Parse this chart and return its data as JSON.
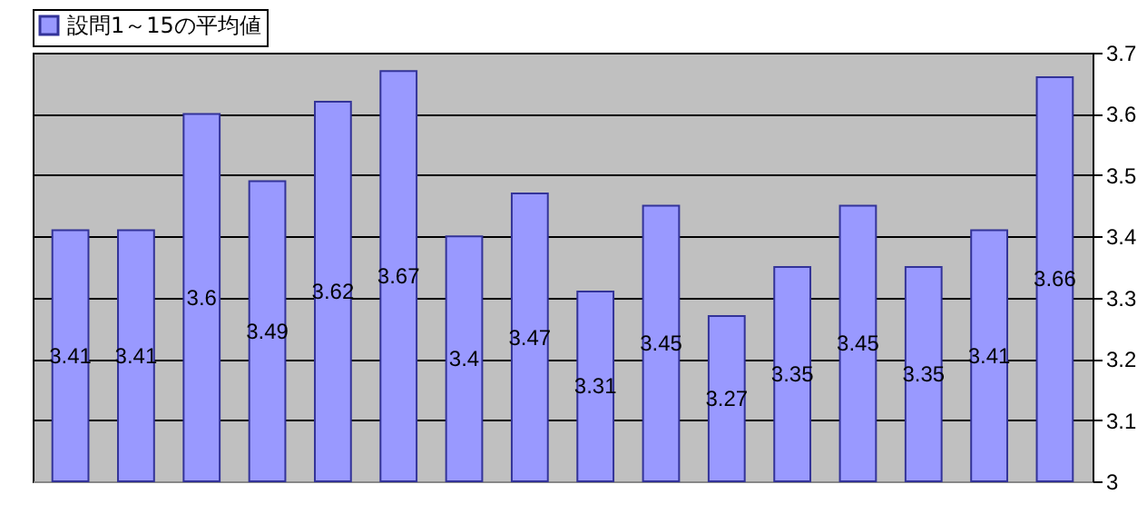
{
  "chart_data": {
    "type": "bar",
    "categories": [
      null,
      null,
      null,
      null,
      null,
      null,
      null,
      null,
      null,
      null,
      null,
      null,
      null,
      null,
      null,
      null
    ],
    "series": [
      {
        "name": "設問1～15の平均値",
        "color": "#9999ff",
        "values": [
          3.41,
          3.41,
          3.6,
          3.49,
          3.62,
          3.67,
          3.4,
          3.47,
          3.31,
          3.45,
          3.27,
          3.35,
          3.45,
          3.35,
          3.41,
          3.66
        ]
      }
    ],
    "ylim": [
      3,
      3.7
    ],
    "yticks": [
      3,
      3.1,
      3.2,
      3.3,
      3.4,
      3.5,
      3.6,
      3.7
    ],
    "grid": "y",
    "legend": "top left",
    "data_labels": true,
    "tick_labels": "y"
  }
}
